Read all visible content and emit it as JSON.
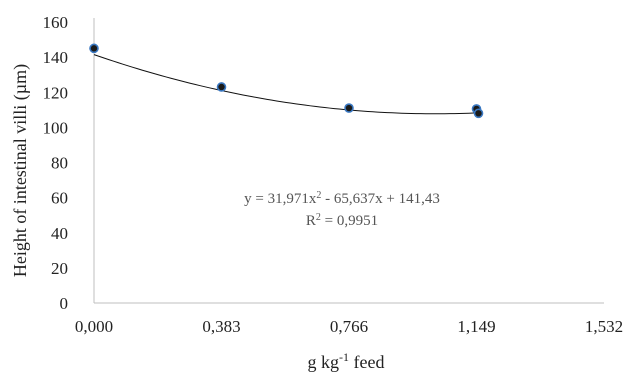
{
  "chart_data": {
    "type": "scatter",
    "xlabel": "g kg",
    "xlabel_sup": "-1",
    "xlabel_suffix": " feed",
    "ylabel": "Height of intestinal villi (µm)",
    "x_ticks": [
      "0,000",
      "0,383",
      "0,766",
      "1,149",
      "1,532"
    ],
    "x_tick_values": [
      0,
      0.383,
      0.766,
      1.149,
      1.532
    ],
    "y_ticks": [
      "0",
      "20",
      "40",
      "60",
      "80",
      "100",
      "120",
      "140",
      "160"
    ],
    "y_tick_values": [
      0,
      20,
      40,
      60,
      80,
      100,
      120,
      140,
      160
    ],
    "xlim": [
      0,
      1.532
    ],
    "ylim": [
      0,
      160
    ],
    "grid": false,
    "points": [
      {
        "x": 0.0,
        "y": 145
      },
      {
        "x": 0.383,
        "y": 123
      },
      {
        "x": 0.766,
        "y": 111
      },
      {
        "x": 1.149,
        "y": 110.5
      },
      {
        "x": 1.155,
        "y": 108
      }
    ],
    "trendline": {
      "type": "polynomial",
      "coefficients": [
        31.971,
        -65.637,
        141.43
      ],
      "x_range": [
        0,
        1.155
      ],
      "equation_parts": {
        "lhs": "y = 31,971x",
        "sup": "2",
        "rhs": " - 65,637x + 141,43"
      },
      "r2_parts": {
        "lhs": "R",
        "sup": "2",
        "rhs": " = 0,9951"
      }
    },
    "colors": {
      "marker_fill": "#1a1a1a",
      "marker_edge": "#3a78c2",
      "line": "#111111",
      "axis": "#bfbfbf"
    }
  }
}
